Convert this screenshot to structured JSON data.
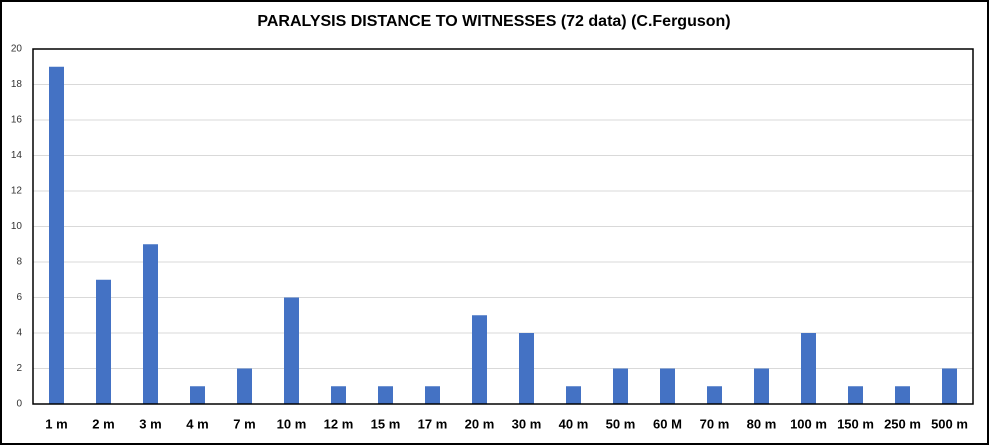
{
  "chart_data": {
    "type": "bar",
    "title": "PARALYSIS DISTANCE TO WITNESSES (72 data) (C.Ferguson)",
    "categories": [
      "1 m",
      "2 m",
      "3 m",
      "4 m",
      "7 m",
      "10 m",
      "12 m",
      "15 m",
      "17 m",
      "20 m",
      "30 m",
      "40 m",
      "50 m",
      "60 M",
      "70 m",
      "80 m",
      "100 m",
      "150 m",
      "250 m",
      "500 m"
    ],
    "values": [
      19,
      7,
      9,
      1,
      2,
      6,
      1,
      1,
      1,
      5,
      4,
      1,
      2,
      2,
      1,
      2,
      4,
      1,
      1,
      2
    ],
    "color": "#4472c4",
    "ylim": [
      0,
      20
    ],
    "yticks": [
      0,
      2,
      4,
      6,
      8,
      10,
      12,
      14,
      16,
      18,
      20
    ],
    "grid": true
  }
}
